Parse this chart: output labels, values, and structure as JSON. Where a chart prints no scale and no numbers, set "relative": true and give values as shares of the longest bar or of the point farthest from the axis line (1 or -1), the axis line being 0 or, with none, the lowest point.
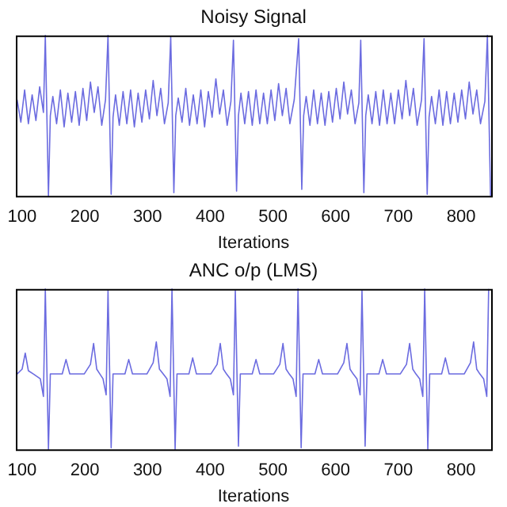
{
  "chart_data": [
    {
      "type": "line",
      "title": "Noisy Signal",
      "xlabel": "Iterations",
      "relative": true,
      "xlim": [
        90,
        848
      ],
      "xticks": [
        100,
        200,
        300,
        400,
        500,
        600,
        700,
        800
      ],
      "grid": false,
      "marker": "none",
      "series": [
        {
          "color": "#6b6be0",
          "x": [
            92,
            98,
            104,
            110,
            116,
            122,
            128,
            134,
            137,
            142,
            145,
            149,
            155,
            161,
            167,
            173,
            179,
            185,
            191,
            197,
            203,
            209,
            215,
            221,
            227,
            233,
            237,
            242,
            245,
            249,
            255,
            261,
            267,
            273,
            279,
            285,
            291,
            297,
            303,
            309,
            315,
            321,
            327,
            333,
            337,
            342,
            345,
            349,
            355,
            361,
            367,
            373,
            379,
            385,
            391,
            397,
            403,
            409,
            415,
            421,
            427,
            433,
            437,
            442,
            445,
            449,
            455,
            461,
            467,
            473,
            479,
            485,
            491,
            497,
            503,
            509,
            515,
            521,
            527,
            534,
            541,
            546,
            549,
            553,
            559,
            565,
            571,
            577,
            583,
            589,
            595,
            601,
            607,
            613,
            619,
            625,
            631,
            637,
            640,
            645,
            648,
            652,
            658,
            664,
            670,
            676,
            682,
            688,
            694,
            700,
            706,
            712,
            718,
            724,
            730,
            737,
            741,
            746,
            749,
            753,
            759,
            765,
            771,
            777,
            783,
            789,
            795,
            801,
            807,
            813,
            819,
            825,
            831,
            838,
            842,
            847
          ],
          "values": [
            0.6,
            0.46,
            0.66,
            0.45,
            0.63,
            0.47,
            0.68,
            0.52,
            1.0,
            0.0,
            0.5,
            0.62,
            0.45,
            0.66,
            0.43,
            0.64,
            0.46,
            0.65,
            0.44,
            0.67,
            0.47,
            0.71,
            0.52,
            0.68,
            0.44,
            0.6,
            1.0,
            0.01,
            0.49,
            0.63,
            0.44,
            0.65,
            0.45,
            0.66,
            0.43,
            0.64,
            0.46,
            0.66,
            0.48,
            0.72,
            0.5,
            0.67,
            0.45,
            0.58,
            0.99,
            0.02,
            0.5,
            0.61,
            0.46,
            0.67,
            0.44,
            0.63,
            0.45,
            0.66,
            0.43,
            0.65,
            0.49,
            0.73,
            0.51,
            0.66,
            0.44,
            0.59,
            0.97,
            0.03,
            0.5,
            0.64,
            0.45,
            0.65,
            0.44,
            0.66,
            0.45,
            0.64,
            0.45,
            0.66,
            0.47,
            0.7,
            0.5,
            0.67,
            0.45,
            0.6,
            0.98,
            0.04,
            0.5,
            0.62,
            0.44,
            0.66,
            0.45,
            0.64,
            0.44,
            0.65,
            0.46,
            0.67,
            0.48,
            0.71,
            0.51,
            0.66,
            0.45,
            0.58,
            0.97,
            0.02,
            0.5,
            0.63,
            0.45,
            0.65,
            0.44,
            0.66,
            0.45,
            0.64,
            0.45,
            0.66,
            0.48,
            0.72,
            0.5,
            0.67,
            0.44,
            0.6,
            0.98,
            0.01,
            0.49,
            0.62,
            0.45,
            0.66,
            0.44,
            0.65,
            0.45,
            0.64,
            0.46,
            0.66,
            0.48,
            0.71,
            0.51,
            0.66,
            0.45,
            0.59,
            1.0,
            0.0
          ]
        }
      ]
    },
    {
      "type": "line",
      "title": "ANC o/p (LMS)",
      "xlabel": "Iterations",
      "relative": true,
      "xlim": [
        90,
        848
      ],
      "xticks": [
        100,
        200,
        300,
        400,
        500,
        600,
        700,
        800
      ],
      "grid": false,
      "marker": "none",
      "series": [
        {
          "color": "#6b6be0",
          "x": [
            92,
            100,
            105,
            110,
            118,
            129,
            134,
            137,
            142,
            145,
            164,
            170,
            176,
            199,
            209,
            214,
            219,
            224,
            229,
            234,
            237,
            242,
            245,
            264,
            270,
            276,
            299,
            309,
            314,
            319,
            325,
            331,
            336,
            339,
            344,
            347,
            366,
            372,
            378,
            401,
            411,
            416,
            421,
            426,
            432,
            437,
            440,
            445,
            448,
            467,
            473,
            479,
            501,
            511,
            516,
            521,
            526,
            532,
            537,
            540,
            545,
            548,
            567,
            573,
            579,
            603,
            613,
            618,
            623,
            628,
            634,
            639,
            642,
            647,
            650,
            669,
            675,
            681,
            703,
            713,
            718,
            723,
            728,
            734,
            739,
            742,
            747,
            750,
            769,
            775,
            781,
            805,
            815,
            820,
            825,
            830,
            836,
            841,
            844
          ],
          "values": [
            0.47,
            0.5,
            0.6,
            0.49,
            0.47,
            0.44,
            0.33,
            1.0,
            0.0,
            0.47,
            0.47,
            0.56,
            0.47,
            0.47,
            0.53,
            0.66,
            0.5,
            0.47,
            0.44,
            0.34,
            0.99,
            0.01,
            0.47,
            0.47,
            0.56,
            0.47,
            0.47,
            0.54,
            0.67,
            0.5,
            0.47,
            0.44,
            0.33,
            1.0,
            0.0,
            0.47,
            0.47,
            0.57,
            0.47,
            0.47,
            0.53,
            0.66,
            0.5,
            0.47,
            0.44,
            0.34,
            0.99,
            0.02,
            0.47,
            0.47,
            0.56,
            0.47,
            0.47,
            0.53,
            0.66,
            0.5,
            0.47,
            0.44,
            0.33,
            1.0,
            0.01,
            0.47,
            0.47,
            0.56,
            0.47,
            0.47,
            0.54,
            0.66,
            0.5,
            0.47,
            0.44,
            0.34,
            0.99,
            0.02,
            0.47,
            0.47,
            0.56,
            0.47,
            0.47,
            0.53,
            0.66,
            0.5,
            0.47,
            0.44,
            0.33,
            1.0,
            0.0,
            0.47,
            0.47,
            0.57,
            0.47,
            0.47,
            0.54,
            0.67,
            0.5,
            0.47,
            0.44,
            0.33,
            1.0
          ]
        }
      ]
    }
  ]
}
